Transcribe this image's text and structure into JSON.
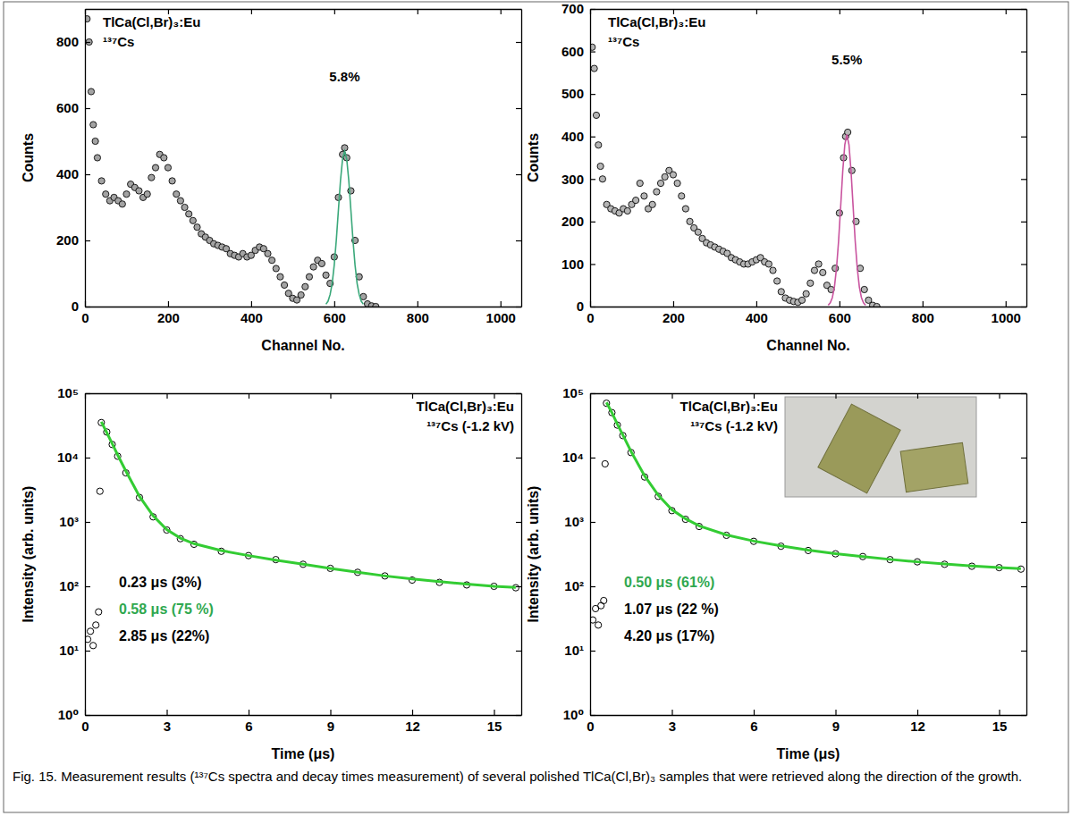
{
  "chart_data": [
    {
      "type": "scatter",
      "title": "TlCa(Cl,Br)₃:Eu",
      "subtitle": "¹³⁷Cs",
      "xlabel": "Channel No.",
      "ylabel": "Counts",
      "xlim": [
        0,
        1050
      ],
      "xticks": [
        0,
        200,
        400,
        600,
        800,
        1000
      ],
      "ylim": [
        0,
        900
      ],
      "yticks": [
        0,
        200,
        400,
        600,
        800
      ],
      "annotations": [
        {
          "text": "5.8%",
          "color": "#000000"
        }
      ],
      "series": [
        {
          "type": "scatter",
          "marker": "circle",
          "color": "#a3a3a3",
          "x": [
            5,
            10,
            15,
            20,
            25,
            30,
            40,
            50,
            60,
            70,
            80,
            90,
            100,
            110,
            120,
            130,
            140,
            150,
            160,
            170,
            180,
            190,
            200,
            210,
            220,
            230,
            240,
            250,
            260,
            270,
            280,
            290,
            300,
            310,
            320,
            330,
            340,
            350,
            360,
            370,
            380,
            390,
            400,
            410,
            420,
            430,
            440,
            450,
            460,
            470,
            480,
            490,
            500,
            510,
            520,
            530,
            540,
            550,
            560,
            570,
            580,
            590,
            600,
            610,
            620,
            625,
            630,
            640,
            650,
            660,
            670,
            680,
            690,
            700
          ],
          "values": [
            870,
            800,
            650,
            550,
            500,
            450,
            380,
            340,
            320,
            330,
            320,
            310,
            340,
            370,
            360,
            350,
            330,
            340,
            390,
            420,
            460,
            450,
            420,
            380,
            340,
            320,
            300,
            280,
            260,
            240,
            220,
            210,
            200,
            190,
            185,
            180,
            175,
            160,
            155,
            150,
            160,
            150,
            155,
            170,
            180,
            175,
            160,
            140,
            115,
            90,
            65,
            40,
            25,
            20,
            35,
            60,
            90,
            120,
            140,
            130,
            95,
            70,
            150,
            330,
            460,
            480,
            450,
            350,
            200,
            90,
            30,
            8,
            2,
            0
          ]
        },
        {
          "type": "line",
          "line_style": "solid",
          "color": "#3aa87a",
          "x": [
            580,
            585,
            590,
            595,
            600,
            605,
            610,
            615,
            620,
            625,
            630,
            635,
            640,
            645,
            650,
            655,
            660,
            665,
            670
          ],
          "values": [
            7,
            16,
            36,
            70,
            126,
            202,
            292,
            381,
            446,
            470,
            446,
            381,
            292,
            202,
            126,
            70,
            36,
            16,
            7
          ]
        }
      ]
    },
    {
      "type": "scatter",
      "title": "TlCa(Cl,Br)₃:Eu",
      "subtitle": "¹³⁷Cs",
      "xlabel": "Channel No.",
      "ylabel": "Counts",
      "xlim": [
        0,
        1050
      ],
      "xticks": [
        0,
        200,
        400,
        600,
        800,
        1000
      ],
      "ylim": [
        0,
        700
      ],
      "yticks": [
        0,
        100,
        200,
        300,
        400,
        500,
        600,
        700
      ],
      "annotations": [
        {
          "text": "5.5%",
          "color": "#000000"
        }
      ],
      "series": [
        {
          "type": "scatter",
          "marker": "circle",
          "color": "#b5b5b5",
          "x": [
            5,
            10,
            15,
            20,
            25,
            30,
            40,
            50,
            60,
            70,
            80,
            90,
            100,
            110,
            120,
            130,
            140,
            150,
            160,
            170,
            180,
            190,
            200,
            210,
            220,
            230,
            240,
            250,
            260,
            270,
            280,
            290,
            300,
            310,
            320,
            330,
            340,
            350,
            360,
            370,
            380,
            390,
            400,
            410,
            420,
            430,
            440,
            450,
            460,
            470,
            480,
            490,
            500,
            510,
            520,
            530,
            540,
            550,
            560,
            570,
            580,
            590,
            600,
            610,
            615,
            620,
            630,
            640,
            650,
            660,
            670,
            680,
            690
          ],
          "values": [
            610,
            560,
            450,
            380,
            330,
            300,
            240,
            230,
            225,
            220,
            230,
            225,
            240,
            250,
            290,
            260,
            230,
            240,
            270,
            290,
            305,
            320,
            310,
            290,
            260,
            230,
            200,
            185,
            175,
            160,
            150,
            145,
            140,
            135,
            130,
            125,
            115,
            110,
            105,
            100,
            100,
            105,
            110,
            115,
            105,
            100,
            85,
            60,
            35,
            20,
            15,
            12,
            10,
            15,
            30,
            55,
            85,
            100,
            80,
            50,
            40,
            90,
            220,
            350,
            400,
            410,
            320,
            200,
            90,
            40,
            15,
            3,
            0
          ]
        },
        {
          "type": "line",
          "line_style": "solid",
          "color": "#c9549f",
          "x": [
            573,
            578,
            583,
            588,
            593,
            598,
            603,
            608,
            613,
            618,
            623,
            628,
            633,
            638,
            643,
            648,
            653,
            658,
            663
          ],
          "values": [
            3,
            9,
            21,
            46,
            90,
            154,
            235,
            318,
            381,
            405,
            381,
            318,
            235,
            154,
            90,
            46,
            21,
            9,
            3
          ]
        }
      ]
    },
    {
      "type": "scatter",
      "title": "TlCa(Cl,Br)₃:Eu",
      "subtitle": "¹³⁷Cs (-1.2 kV)",
      "xlabel": "Time (μs)",
      "ylabel": "Intensity (arb. units)",
      "log": "y",
      "xlim": [
        0,
        16
      ],
      "xticks": [
        0,
        3,
        6,
        9,
        12,
        15
      ],
      "ylim": [
        1,
        100000
      ],
      "yticks": [
        {
          "value": 1,
          "label": "10⁰"
        },
        {
          "value": 10,
          "label": "10¹"
        },
        {
          "value": 100,
          "label": "10²"
        },
        {
          "value": 1000,
          "label": "10³"
        },
        {
          "value": 10000,
          "label": "10⁴"
        },
        {
          "value": 100000,
          "label": "10⁵"
        }
      ],
      "annotations": [
        {
          "text": "0.23 μs (3%)",
          "color": "#000000"
        },
        {
          "text": "0.58 μs (75 %)",
          "color": "#2fa84f"
        },
        {
          "text": "2.85 μs (22%)",
          "color": "#000000"
        }
      ],
      "series": [
        {
          "type": "scatter",
          "marker": "circle-open",
          "color": "#000000",
          "x": [
            0.1,
            0.2,
            0.3,
            0.4,
            0.5,
            0.55,
            0.6,
            0.8,
            1,
            1.2,
            1.5,
            2,
            2.5,
            3,
            3.5,
            4,
            5,
            6,
            7,
            8,
            9,
            10,
            11,
            12,
            13,
            14,
            15,
            15.8
          ],
          "values": [
            15,
            20,
            12,
            25,
            40,
            3000,
            35000,
            25000,
            16000,
            10500,
            5800,
            2400,
            1200,
            750,
            550,
            450,
            350,
            300,
            260,
            220,
            190,
            165,
            145,
            125,
            115,
            105,
            100,
            95
          ]
        },
        {
          "type": "line",
          "line_style": "solid",
          "color": "#33cc33",
          "x": [
            0.6,
            0.8,
            1,
            1.2,
            1.5,
            2,
            2.5,
            3,
            3.5,
            4,
            5,
            6,
            7,
            8,
            9,
            10,
            11,
            12,
            13,
            14,
            15,
            15.8
          ],
          "values": [
            36000,
            24500,
            16500,
            11000,
            6200,
            2500,
            1250,
            760,
            560,
            460,
            360,
            300,
            255,
            220,
            190,
            165,
            145,
            130,
            118,
            108,
            100,
            96
          ]
        }
      ]
    },
    {
      "type": "scatter",
      "title": "TlCa(Cl,Br)₃:Eu",
      "subtitle": "¹³⁷Cs (-1.2 kV)",
      "xlabel": "Time (μs)",
      "ylabel": "Intensity (arb. units)",
      "log": "y",
      "xlim": [
        0,
        16
      ],
      "xticks": [
        0,
        3,
        6,
        9,
        12,
        15
      ],
      "ylim": [
        1,
        100000
      ],
      "yticks": [
        {
          "value": 1,
          "label": "10⁰"
        },
        {
          "value": 10,
          "label": "10¹"
        },
        {
          "value": 100,
          "label": "10²"
        },
        {
          "value": 1000,
          "label": "10³"
        },
        {
          "value": 10000,
          "label": "10⁴"
        },
        {
          "value": 100000,
          "label": "10⁵"
        }
      ],
      "annotations": [
        {
          "text": "0.50 μs (61%)",
          "color": "#2fa84f"
        },
        {
          "text": "1.07 μs (22 %)",
          "color": "#000000"
        },
        {
          "text": "4.20 μs (17%)",
          "color": "#000000"
        }
      ],
      "series": [
        {
          "type": "scatter",
          "marker": "circle-open",
          "color": "#000000",
          "x": [
            0.1,
            0.2,
            0.3,
            0.4,
            0.5,
            0.55,
            0.6,
            0.8,
            1,
            1.2,
            1.5,
            2,
            2.5,
            3,
            3.5,
            4,
            5,
            6,
            7,
            8,
            9,
            10,
            11,
            12,
            13,
            14,
            15,
            15.8
          ],
          "values": [
            30,
            45,
            25,
            50,
            60,
            8000,
            70000,
            50000,
            32000,
            22000,
            12000,
            5000,
            2500,
            1500,
            1100,
            850,
            620,
            500,
            420,
            360,
            320,
            290,
            260,
            240,
            220,
            205,
            195,
            185
          ]
        },
        {
          "type": "line",
          "line_style": "solid",
          "color": "#33cc33",
          "x": [
            0.6,
            0.8,
            1,
            1.2,
            1.5,
            2,
            2.5,
            3,
            3.5,
            4,
            5,
            6,
            7,
            8,
            9,
            10,
            11,
            12,
            13,
            14,
            15,
            15.8
          ],
          "values": [
            72000,
            50000,
            33000,
            22500,
            12500,
            5200,
            2600,
            1550,
            1120,
            870,
            630,
            505,
            425,
            365,
            322,
            290,
            262,
            240,
            222,
            207,
            196,
            188
          ]
        }
      ]
    }
  ],
  "caption": "Fig. 15. Measurement results (¹³⁷Cs spectra and decay times measurement) of several polished TlCa(Cl,Br)₃ samples that were retrieved along the direction of the growth."
}
